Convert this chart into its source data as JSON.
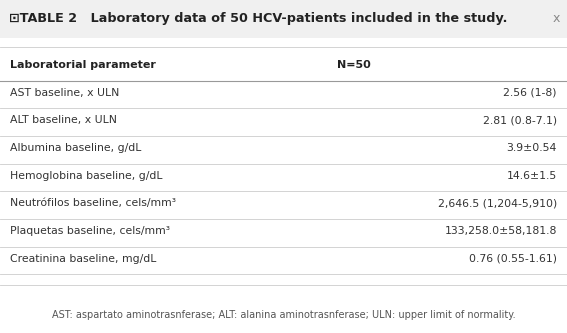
{
  "title": "⊡TABLE 2   Laboratory data of 50 HCV-patients included in the study.",
  "title_x_mark": "x",
  "col1_header": "Laboratorial parameter",
  "col2_header": "N=50",
  "rows": [
    [
      "AST baseline, x ULN",
      "2.56 (1-8)"
    ],
    [
      "ALT baseline, x ULN",
      "2.81 (0.8-7.1)"
    ],
    [
      "Albumina baseline, g/dL",
      "3.9±0.54"
    ],
    [
      "Hemoglobina baseline, g/dL",
      "14.6±1.5"
    ],
    [
      "Neutrófilos baseline, cels/mm³",
      "2,646.5 (1,204-5,910)"
    ],
    [
      "Plaquetas baseline, cels/mm³",
      "133,258.0±58,181.8"
    ],
    [
      "Creatinina baseline, mg/dL",
      "0.76 (0.55-1.61)"
    ]
  ],
  "footnote": "AST: aspartato aminotrasnferase; ALT: alanina aminotrasnferase; ULN: upper limit of normality.",
  "bg_color": "#ffffff",
  "title_bg": "#f0f0f0",
  "title_font_color": "#222222",
  "header_font_color": "#222222",
  "body_font_color": "#333333",
  "footnote_color": "#555555",
  "line_color": "#cccccc",
  "header_line_color": "#999999"
}
